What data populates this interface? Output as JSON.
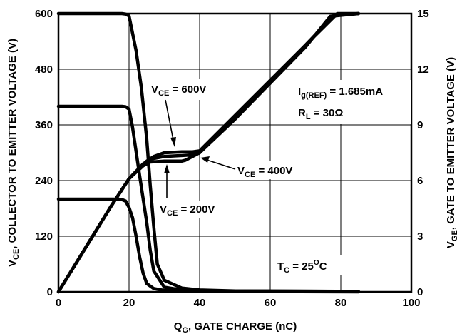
{
  "chart_data": {
    "type": "line",
    "xlabel": {
      "main": "Q",
      "sub": "G",
      "rest": ", GATE CHARGE (nC)"
    },
    "ylabel_left": {
      "main": "V",
      "sub": "CE",
      "rest": ", COLLECTOR TO EMITTER  VOLTAGE (V)"
    },
    "ylabel_right": {
      "main": "V",
      "sub": "GE",
      "rest": ", GATE TO EMITTER VOLTAGE (V)"
    },
    "xlim": [
      0,
      100
    ],
    "ylim_left": [
      0,
      600
    ],
    "ylim_right": [
      0,
      15
    ],
    "x_ticks": [
      "0",
      "20",
      "40",
      "60",
      "80",
      "100"
    ],
    "y_ticks_left": [
      "0",
      "120",
      "240",
      "360",
      "480",
      "600"
    ],
    "y_ticks_right": [
      "0",
      "3",
      "6",
      "9",
      "12",
      "15"
    ],
    "grid": true,
    "annotations": {
      "iref": {
        "main": "I",
        "sub": "g(REF)",
        "rest": " = 1.685mA"
      },
      "rl": {
        "main": "R",
        "sub": "L",
        "rest": " = 30Ω"
      },
      "tc": {
        "main": "T",
        "sub": "C",
        "rest": " = 25",
        "sup": "O",
        "tail": "C"
      },
      "v600": {
        "main": "V",
        "sub": "CE",
        "rest": " = 600V"
      },
      "v400": {
        "main": "V",
        "sub": "CE",
        "rest": " = 400V"
      },
      "v200": {
        "main": "V",
        "sub": "CE",
        "rest": " = 200V"
      }
    },
    "series": [
      {
        "axis": "left",
        "x": [
          0,
          18,
          19,
          20,
          22,
          23.5,
          25,
          26,
          27,
          28,
          30,
          35,
          40,
          50,
          85
        ],
        "y": [
          600,
          600,
          599,
          595,
          520,
          440,
          330,
          230,
          140,
          60,
          25,
          8,
          4,
          2,
          1
        ]
      },
      {
        "axis": "left",
        "x": [
          0,
          18,
          19,
          20,
          21,
          23,
          25,
          26,
          27,
          30,
          35,
          45,
          85
        ],
        "y": [
          400,
          400,
          399,
          394,
          355,
          250,
          150,
          90,
          45,
          10,
          4,
          2,
          1
        ]
      },
      {
        "axis": "left",
        "x": [
          0,
          17,
          18,
          19,
          20,
          21,
          22,
          23,
          24,
          25,
          27,
          30,
          35,
          40,
          85
        ],
        "y": [
          200,
          200,
          199,
          196,
          182,
          160,
          120,
          75,
          40,
          18,
          7,
          3,
          2,
          1,
          0
        ]
      },
      {
        "axis": "right",
        "x": [
          0,
          5,
          10,
          15,
          20,
          25,
          27,
          30,
          35,
          38,
          40,
          50,
          60,
          70,
          79,
          85
        ],
        "y": [
          0,
          1.55,
          3.1,
          4.65,
          6.1,
          7.05,
          7.3,
          7.5,
          7.55,
          7.55,
          7.6,
          9.5,
          11.4,
          13.3,
          15,
          15
        ]
      },
      {
        "axis": "right",
        "x": [
          0,
          5,
          10,
          15,
          20,
          24,
          26,
          30,
          35,
          37.5,
          40,
          50,
          60,
          70,
          78,
          85
        ],
        "y": [
          0,
          1.55,
          3.1,
          4.65,
          6.1,
          6.9,
          7.15,
          7.3,
          7.35,
          7.38,
          7.5,
          9.45,
          11.35,
          13.3,
          14.9,
          15
        ]
      },
      {
        "axis": "right",
        "x": [
          0,
          5,
          10,
          15,
          20,
          24,
          26,
          30,
          35,
          36,
          40,
          50,
          60,
          70,
          77,
          85
        ],
        "y": [
          0,
          1.55,
          3.1,
          4.65,
          6.1,
          6.8,
          7.0,
          7.05,
          7.05,
          7.1,
          7.5,
          9.3,
          11.25,
          13.2,
          14.85,
          15
        ]
      }
    ]
  }
}
